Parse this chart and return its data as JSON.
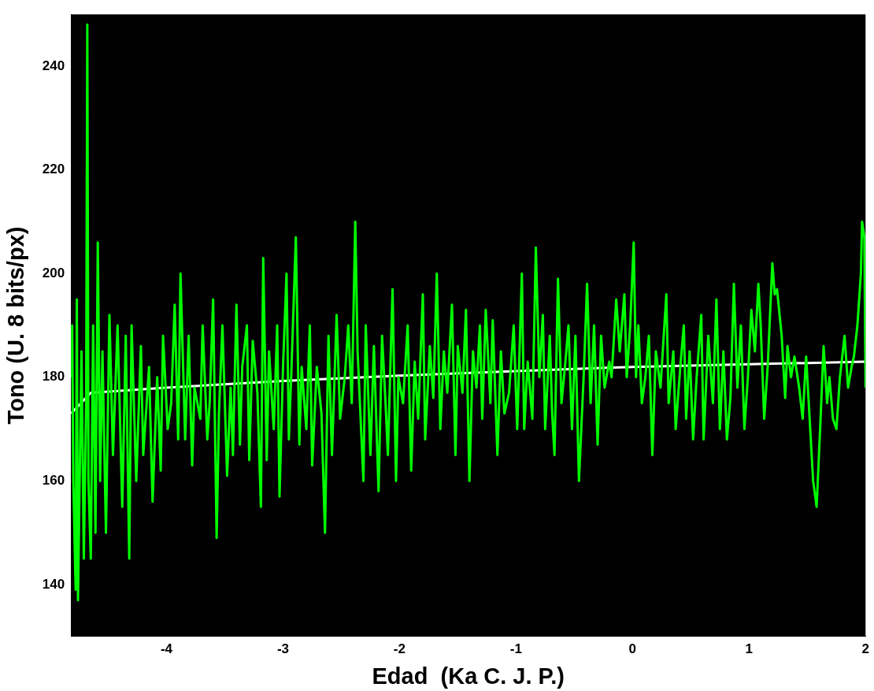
{
  "chart_data": {
    "type": "line",
    "xlabel": "Edad  (Ka C. J. P.)",
    "ylabel": "Tono (U. 8 bits/px)",
    "xlim": [
      -4.82,
      2.0
    ],
    "ylim": [
      130,
      250
    ],
    "xticks": [
      -4,
      -3,
      -2,
      -1,
      0,
      1,
      2
    ],
    "yticks": [
      140,
      160,
      180,
      200,
      220,
      240
    ],
    "grid": false,
    "legend": false,
    "series": [
      {
        "color": "#00ff00",
        "x": [
          -4.82,
          -4.81,
          -4.8,
          -4.78,
          -4.77,
          -4.76,
          -4.73,
          -4.71,
          -4.69,
          -4.68,
          -4.67,
          -4.65,
          -4.63,
          -4.61,
          -4.59,
          -4.57,
          -4.55,
          -4.52,
          -4.49,
          -4.46,
          -4.42,
          -4.38,
          -4.35,
          -4.32,
          -4.3,
          -4.26,
          -4.22,
          -4.2,
          -4.15,
          -4.12,
          -4.08,
          -4.05,
          -4.03,
          -3.99,
          -3.96,
          -3.93,
          -3.9,
          -3.88,
          -3.84,
          -3.81,
          -3.78,
          -3.76,
          -3.71,
          -3.69,
          -3.65,
          -3.63,
          -3.6,
          -3.57,
          -3.55,
          -3.52,
          -3.48,
          -3.45,
          -3.43,
          -3.4,
          -3.37,
          -3.35,
          -3.31,
          -3.29,
          -3.26,
          -3.22,
          -3.19,
          -3.17,
          -3.14,
          -3.12,
          -3.08,
          -3.05,
          -3.03,
          -3.0,
          -2.97,
          -2.95,
          -2.93,
          -2.89,
          -2.86,
          -2.84,
          -2.8,
          -2.77,
          -2.75,
          -2.71,
          -2.67,
          -2.64,
          -2.61,
          -2.58,
          -2.54,
          -2.51,
          -2.47,
          -2.44,
          -2.41,
          -2.38,
          -2.36,
          -2.31,
          -2.29,
          -2.25,
          -2.22,
          -2.18,
          -2.15,
          -2.12,
          -2.1,
          -2.06,
          -2.03,
          -2.01,
          -1.97,
          -1.93,
          -1.9,
          -1.87,
          -1.84,
          -1.8,
          -1.78,
          -1.74,
          -1.71,
          -1.68,
          -1.65,
          -1.62,
          -1.59,
          -1.55,
          -1.52,
          -1.5,
          -1.46,
          -1.43,
          -1.4,
          -1.37,
          -1.34,
          -1.31,
          -1.29,
          -1.26,
          -1.22,
          -1.2,
          -1.16,
          -1.13,
          -1.1,
          -1.06,
          -1.02,
          -0.99,
          -0.95,
          -0.93,
          -0.9,
          -0.86,
          -0.83,
          -0.8,
          -0.77,
          -0.75,
          -0.71,
          -0.69,
          -0.67,
          -0.64,
          -0.61,
          -0.58,
          -0.55,
          -0.52,
          -0.49,
          -0.46,
          -0.42,
          -0.39,
          -0.36,
          -0.33,
          -0.3,
          -0.27,
          -0.24,
          -0.2,
          -0.18,
          -0.14,
          -0.11,
          -0.07,
          -0.05,
          -0.02,
          0.01,
          0.03,
          0.05,
          0.08,
          0.11,
          0.14,
          0.17,
          0.2,
          0.24,
          0.29,
          0.31,
          0.35,
          0.37,
          0.41,
          0.44,
          0.46,
          0.49,
          0.52,
          0.55,
          0.59,
          0.61,
          0.65,
          0.69,
          0.72,
          0.75,
          0.78,
          0.81,
          0.84,
          0.87,
          0.9,
          0.93,
          0.96,
          0.99,
          1.02,
          1.05,
          1.08,
          1.1,
          1.13,
          1.16,
          1.2,
          1.22,
          1.24,
          1.28,
          1.31,
          1.33,
          1.36,
          1.39,
          1.43,
          1.46,
          1.49,
          1.52,
          1.55,
          1.58,
          1.61,
          1.64,
          1.67,
          1.69,
          1.72,
          1.75,
          1.78,
          1.82,
          1.85,
          1.88,
          1.9,
          1.93,
          1.96,
          1.97,
          1.99,
          2.0
        ],
        "values": [
          180,
          190,
          160,
          139,
          195,
          137,
          185,
          145,
          175,
          248,
          160,
          145,
          190,
          150,
          206,
          160,
          185,
          150,
          192,
          165,
          190,
          155,
          188,
          145,
          190,
          160,
          186,
          165,
          182,
          156,
          180,
          162,
          188,
          170,
          175,
          194,
          168,
          200,
          168,
          188,
          163,
          178,
          172,
          190,
          168,
          175,
          195,
          149,
          173,
          190,
          161,
          178,
          165,
          194,
          167,
          182,
          190,
          164,
          187,
          177,
          155,
          203,
          164,
          185,
          170,
          190,
          157,
          182,
          200,
          168,
          180,
          207,
          167,
          182,
          170,
          190,
          163,
          182,
          173,
          150,
          188,
          165,
          192,
          172,
          180,
          190,
          175,
          210,
          185,
          160,
          190,
          165,
          186,
          158,
          188,
          175,
          165,
          197,
          160,
          180,
          175,
          190,
          162,
          183,
          172,
          196,
          168,
          186,
          176,
          200,
          170,
          185,
          177,
          194,
          165,
          186,
          177,
          193,
          160,
          185,
          178,
          190,
          172,
          193,
          175,
          191,
          165,
          185,
          173,
          177,
          190,
          170,
          200,
          170,
          183,
          172,
          205,
          180,
          192,
          170,
          188,
          173,
          165,
          199,
          175,
          182,
          190,
          170,
          188,
          160,
          180,
          198,
          175,
          190,
          167,
          188,
          178,
          183,
          180,
          195,
          185,
          196,
          180,
          190,
          206,
          180,
          190,
          175,
          180,
          188,
          165,
          185,
          178,
          196,
          175,
          185,
          170,
          182,
          190,
          172,
          185,
          168,
          180,
          192,
          168,
          188,
          175,
          195,
          170,
          185,
          168,
          176,
          198,
          178,
          190,
          170,
          180,
          193,
          185,
          198,
          190,
          172,
          182,
          202,
          196,
          197,
          188,
          176,
          186,
          180,
          184,
          178,
          172,
          184,
          172,
          160,
          155,
          170,
          186,
          175,
          180,
          172,
          170,
          180,
          188,
          178,
          182,
          184,
          190,
          200,
          210,
          207,
          178
        ]
      },
      {
        "color": "#ffffff",
        "x": [
          -4.82,
          -4.65,
          -4.0,
          -3.0,
          -2.0,
          -1.0,
          0.0,
          1.0,
          2.0
        ],
        "values": [
          173,
          177,
          178,
          179.3,
          180.3,
          181.2,
          182,
          182.5,
          183
        ]
      }
    ]
  }
}
